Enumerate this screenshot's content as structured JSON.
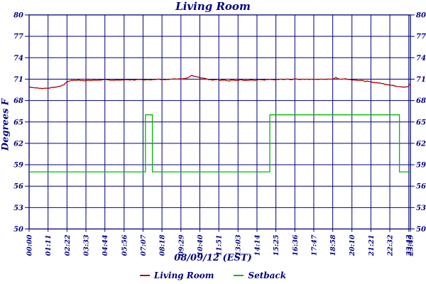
{
  "chart_data": {
    "type": "line",
    "title": "Living Room",
    "xlabel": "08/09/12 (EST)",
    "ylabel": "Degrees F",
    "ylim": [
      50,
      80
    ],
    "yticks": [
      50,
      53,
      56,
      59,
      62,
      65,
      68,
      71,
      74,
      77,
      80
    ],
    "xlim_minutes": [
      0,
      1429
    ],
    "grid": true,
    "legend_position": "bottom",
    "axis_color": "#000080",
    "xticks": [
      {
        "min": 0,
        "label": "00:00"
      },
      {
        "min": 71,
        "label": "01:11"
      },
      {
        "min": 142,
        "label": "02:22"
      },
      {
        "min": 213,
        "label": "03:33"
      },
      {
        "min": 284,
        "label": "04:44"
      },
      {
        "min": 356,
        "label": "05:56"
      },
      {
        "min": 427,
        "label": "07:07"
      },
      {
        "min": 498,
        "label": "08:18"
      },
      {
        "min": 569,
        "label": "09:29"
      },
      {
        "min": 640,
        "label": "10:40"
      },
      {
        "min": 711,
        "label": "11:51"
      },
      {
        "min": 783,
        "label": "13:03"
      },
      {
        "min": 854,
        "label": "14:14"
      },
      {
        "min": 925,
        "label": "15:25"
      },
      {
        "min": 996,
        "label": "16:36"
      },
      {
        "min": 1067,
        "label": "17:47"
      },
      {
        "min": 1138,
        "label": "18:58"
      },
      {
        "min": 1210,
        "label": "20:10"
      },
      {
        "min": 1281,
        "label": "21:21"
      },
      {
        "min": 1352,
        "label": "22:32"
      },
      {
        "min": 1423,
        "label": "23:43"
      },
      {
        "min": 1429,
        "label": "23:49"
      }
    ],
    "series": [
      {
        "name": "Living Room",
        "color": "#b00000",
        "noise": 0.05,
        "points": [
          [
            0,
            69.9
          ],
          [
            20,
            69.8
          ],
          [
            45,
            69.7
          ],
          [
            70,
            69.75
          ],
          [
            95,
            69.85
          ],
          [
            115,
            70.0
          ],
          [
            130,
            70.2
          ],
          [
            140,
            70.6
          ],
          [
            155,
            70.8
          ],
          [
            185,
            70.85
          ],
          [
            215,
            70.8
          ],
          [
            250,
            70.85
          ],
          [
            285,
            70.9
          ],
          [
            320,
            70.85
          ],
          [
            355,
            70.9
          ],
          [
            390,
            70.9
          ],
          [
            420,
            70.95
          ],
          [
            450,
            70.9
          ],
          [
            480,
            71.0
          ],
          [
            510,
            70.95
          ],
          [
            540,
            71.0
          ],
          [
            565,
            71.05
          ],
          [
            585,
            71.1
          ],
          [
            600,
            71.25
          ],
          [
            609,
            71.55
          ],
          [
            615,
            71.4
          ],
          [
            625,
            71.35
          ],
          [
            638,
            71.2
          ],
          [
            655,
            71.1
          ],
          [
            672,
            70.95
          ],
          [
            690,
            70.85
          ],
          [
            705,
            70.95
          ],
          [
            718,
            70.8
          ],
          [
            732,
            70.9
          ],
          [
            748,
            70.75
          ],
          [
            762,
            70.9
          ],
          [
            778,
            70.8
          ],
          [
            795,
            70.9
          ],
          [
            812,
            70.8
          ],
          [
            830,
            70.9
          ],
          [
            848,
            70.85
          ],
          [
            866,
            70.95
          ],
          [
            884,
            70.9
          ],
          [
            902,
            71.0
          ],
          [
            920,
            70.9
          ],
          [
            940,
            70.95
          ],
          [
            960,
            71.0
          ],
          [
            980,
            70.95
          ],
          [
            1000,
            71.0
          ],
          [
            1020,
            70.95
          ],
          [
            1040,
            71.0
          ],
          [
            1060,
            70.95
          ],
          [
            1080,
            71.0
          ],
          [
            1100,
            70.95
          ],
          [
            1120,
            71.0
          ],
          [
            1140,
            71.05
          ],
          [
            1150,
            71.2
          ],
          [
            1158,
            71.05
          ],
          [
            1170,
            71.0
          ],
          [
            1185,
            71.05
          ],
          [
            1200,
            70.95
          ],
          [
            1215,
            70.9
          ],
          [
            1230,
            70.85
          ],
          [
            1245,
            70.8
          ],
          [
            1260,
            70.7
          ],
          [
            1275,
            70.65
          ],
          [
            1290,
            70.55
          ],
          [
            1305,
            70.5
          ],
          [
            1320,
            70.4
          ],
          [
            1335,
            70.3
          ],
          [
            1350,
            70.2
          ],
          [
            1365,
            70.1
          ],
          [
            1380,
            70.0
          ],
          [
            1392,
            69.95
          ],
          [
            1404,
            69.9
          ],
          [
            1414,
            69.9
          ],
          [
            1421,
            69.95
          ],
          [
            1426,
            70.25
          ],
          [
            1429,
            70.35
          ]
        ]
      },
      {
        "name": "Setback",
        "color": "#00b800",
        "noise": 0,
        "points": [
          [
            0,
            58
          ],
          [
            436,
            58
          ],
          [
            436,
            66
          ],
          [
            462,
            66
          ],
          [
            462,
            58
          ],
          [
            902,
            58
          ],
          [
            902,
            66
          ],
          [
            1388,
            66
          ],
          [
            1388,
            58
          ],
          [
            1429,
            58
          ]
        ]
      }
    ]
  }
}
